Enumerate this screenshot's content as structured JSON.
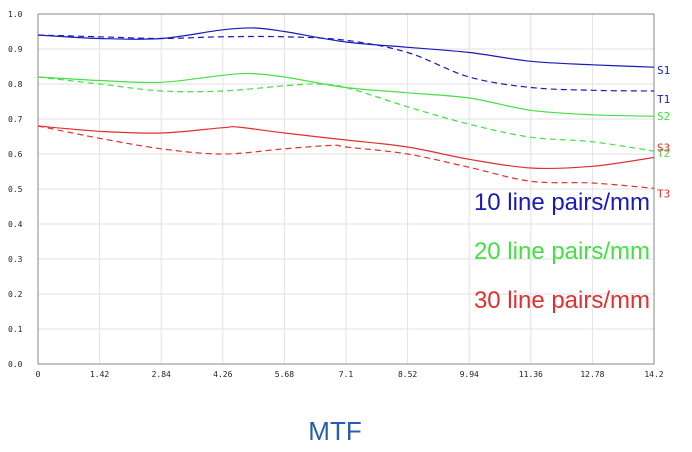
{
  "chart_data": {
    "type": "line",
    "title": "MTF",
    "xlabel": "",
    "ylabel": "",
    "xlim": [
      0,
      14.2
    ],
    "ylim": [
      0.0,
      1.0
    ],
    "grid": true,
    "x_ticks": [
      "0",
      "1.42",
      "2.84",
      "4.26",
      "5.68",
      "7.1",
      "8.52",
      "9.94",
      "11.36",
      "12.78",
      "14.2"
    ],
    "y_ticks": [
      "0.0",
      "0.1",
      "0.2",
      "0.3",
      "0.4",
      "0.5",
      "0.6",
      "0.7",
      "0.8",
      "0.9",
      "1.0"
    ],
    "legend": [
      {
        "text": "10 line pairs/mm",
        "color": "#1a1ab8"
      },
      {
        "text": "20 line pairs/mm",
        "color": "#44e044"
      },
      {
        "text": "30 line pairs/mm",
        "color": "#e03030"
      }
    ],
    "series": [
      {
        "name": "S1",
        "color": "#1a1ab8",
        "dash": false,
        "points": [
          [
            0,
            0.94
          ],
          [
            1.42,
            0.93
          ],
          [
            2.84,
            0.93
          ],
          [
            4.26,
            0.955
          ],
          [
            5.0,
            0.96
          ],
          [
            5.68,
            0.95
          ],
          [
            7.1,
            0.92
          ],
          [
            8.52,
            0.905
          ],
          [
            9.94,
            0.89
          ],
          [
            11.36,
            0.865
          ],
          [
            12.78,
            0.855
          ],
          [
            14.2,
            0.848
          ]
        ]
      },
      {
        "name": "T1",
        "color": "#1a1ab8",
        "dash": true,
        "points": [
          [
            0,
            0.94
          ],
          [
            1.42,
            0.935
          ],
          [
            2.84,
            0.93
          ],
          [
            4.26,
            0.935
          ],
          [
            5.68,
            0.935
          ],
          [
            7.1,
            0.925
          ],
          [
            8.52,
            0.89
          ],
          [
            9.94,
            0.82
          ],
          [
            11.36,
            0.79
          ],
          [
            12.78,
            0.782
          ],
          [
            14.2,
            0.78
          ]
        ]
      },
      {
        "name": "S2",
        "color": "#44e044",
        "dash": false,
        "points": [
          [
            0,
            0.82
          ],
          [
            1.42,
            0.81
          ],
          [
            2.84,
            0.805
          ],
          [
            4.26,
            0.825
          ],
          [
            4.9,
            0.83
          ],
          [
            5.68,
            0.82
          ],
          [
            7.1,
            0.79
          ],
          [
            8.52,
            0.775
          ],
          [
            9.94,
            0.76
          ],
          [
            11.36,
            0.725
          ],
          [
            12.78,
            0.712
          ],
          [
            14.2,
            0.708
          ]
        ]
      },
      {
        "name": "T2",
        "color": "#44e044",
        "dash": true,
        "points": [
          [
            0,
            0.82
          ],
          [
            1.42,
            0.8
          ],
          [
            2.84,
            0.78
          ],
          [
            4.26,
            0.78
          ],
          [
            5.68,
            0.795
          ],
          [
            6.4,
            0.8
          ],
          [
            7.1,
            0.79
          ],
          [
            8.52,
            0.735
          ],
          [
            9.94,
            0.685
          ],
          [
            11.36,
            0.648
          ],
          [
            12.78,
            0.635
          ],
          [
            14.2,
            0.608
          ]
        ]
      },
      {
        "name": "S3",
        "color": "#e03030",
        "dash": false,
        "points": [
          [
            0,
            0.68
          ],
          [
            1.42,
            0.665
          ],
          [
            2.84,
            0.66
          ],
          [
            4.26,
            0.675
          ],
          [
            4.6,
            0.677
          ],
          [
            5.68,
            0.66
          ],
          [
            7.1,
            0.64
          ],
          [
            8.52,
            0.62
          ],
          [
            9.94,
            0.585
          ],
          [
            11.36,
            0.56
          ],
          [
            12.78,
            0.565
          ],
          [
            14.2,
            0.59
          ]
        ]
      },
      {
        "name": "T3",
        "color": "#e03030",
        "dash": true,
        "points": [
          [
            0,
            0.68
          ],
          [
            1.42,
            0.645
          ],
          [
            2.84,
            0.615
          ],
          [
            4.26,
            0.6
          ],
          [
            5.68,
            0.615
          ],
          [
            6.8,
            0.625
          ],
          [
            7.1,
            0.62
          ],
          [
            8.52,
            0.6
          ],
          [
            9.94,
            0.562
          ],
          [
            11.36,
            0.522
          ],
          [
            12.78,
            0.517
          ],
          [
            14.2,
            0.502
          ]
        ]
      }
    ]
  }
}
